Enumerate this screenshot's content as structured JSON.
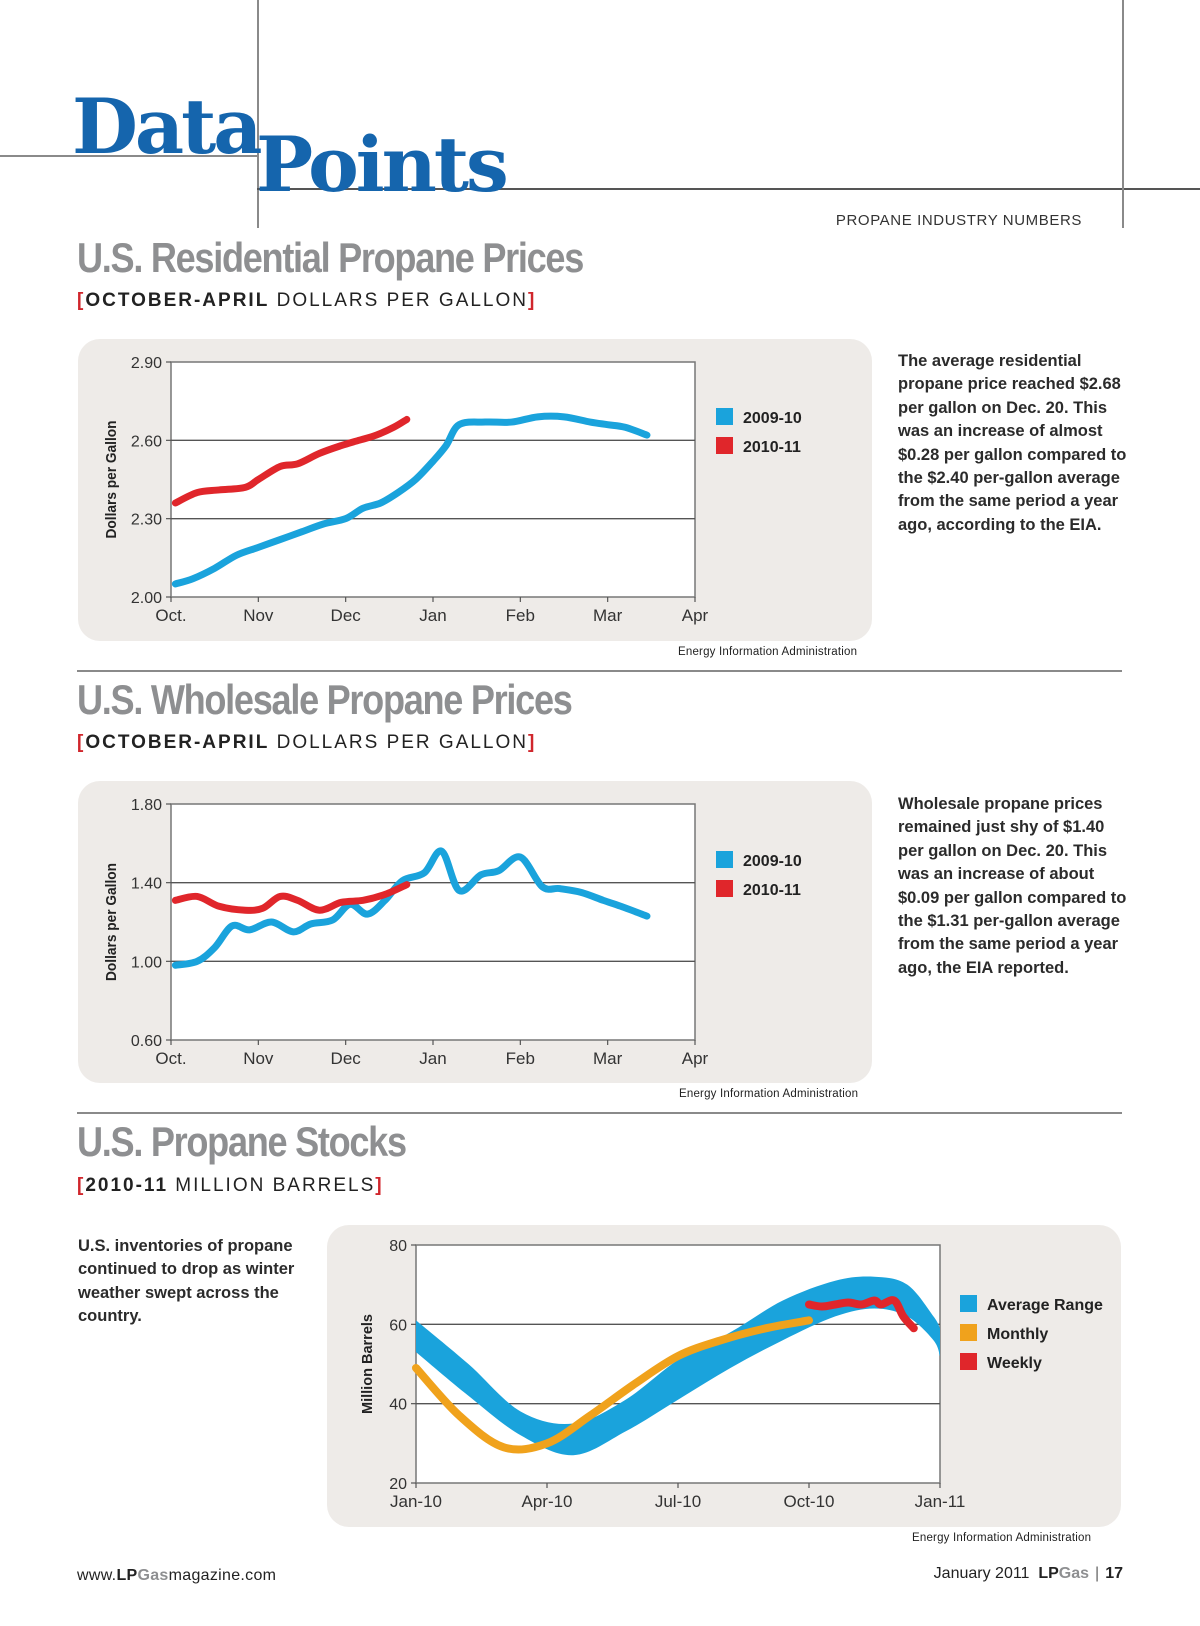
{
  "header": {
    "logo_word1": "Data",
    "logo_word2": "Points",
    "kicker": "PROPANE INDUSTRY NUMBERS"
  },
  "sections": [
    {
      "title": "U.S. Residential Propane Prices",
      "subtitle_bold": "OCTOBER-APRIL",
      "subtitle_rest": " DOLLARS PER GALLON",
      "blurb": "The average residential propane price reached $2.68 per gallon on Dec. 20. This was an increase of almost $0.28 per gallon compared to the $2.40 per-gallon average from the same period a year ago, according to the EIA.",
      "source": "Energy Information Administration"
    },
    {
      "title": "U.S. Wholesale Propane Prices",
      "subtitle_bold": "OCTOBER-APRIL",
      "subtitle_rest": " DOLLARS PER GALLON",
      "blurb": "Wholesale propane prices remained just shy of $1.40 per gallon on Dec. 20. This was an increase of about $0.09 per gallon compared to the $1.31 per-gallon average from the same period a year ago, the EIA reported.",
      "source": "Energy Information Administration"
    },
    {
      "title": "U.S. Propane Stocks",
      "subtitle_bold": "2010-11",
      "subtitle_rest": " MILLION BARRELS",
      "blurb": "U.S. inventories of propane continued to drop as winter weather swept across the country.",
      "source": "Energy Information Administration"
    }
  ],
  "colors": {
    "blue": "#1aa3dc",
    "red": "#e0262b",
    "orange": "#f0a21c",
    "panel": "#eeebe8",
    "title_gray": "#8e8f91",
    "logo_blue": "#1565ad"
  },
  "chart_data": [
    {
      "type": "line",
      "title": "U.S. Residential Propane Prices",
      "ylabel": "Dollars per Gallon",
      "xlabel": "",
      "categories": [
        "Oct.",
        "Nov",
        "Dec",
        "Jan",
        "Feb",
        "Mar",
        "Apr"
      ],
      "yticks": [
        "2.90",
        "2.60",
        "2.30",
        "2.00"
      ],
      "ylim": [
        2.0,
        2.9
      ],
      "gridlines": [
        2.6,
        2.3
      ],
      "legend_position": "right",
      "series": [
        {
          "name": "2009-10",
          "color": "#1aa3dc",
          "x": [
            0.05,
            0.25,
            0.5,
            0.75,
            1.0,
            1.25,
            1.5,
            1.75,
            2.0,
            2.2,
            2.4,
            2.6,
            2.8,
            3.0,
            3.15,
            3.3,
            3.6,
            3.9,
            4.2,
            4.5,
            4.8,
            5.0,
            5.2,
            5.45
          ],
          "values": [
            2.05,
            2.07,
            2.11,
            2.16,
            2.19,
            2.22,
            2.25,
            2.28,
            2.3,
            2.34,
            2.36,
            2.4,
            2.45,
            2.52,
            2.58,
            2.66,
            2.67,
            2.67,
            2.69,
            2.69,
            2.67,
            2.66,
            2.65,
            2.62
          ]
        },
        {
          "name": "2010-11",
          "color": "#e0262b",
          "x": [
            0.05,
            0.3,
            0.55,
            0.85,
            1.0,
            1.25,
            1.45,
            1.7,
            1.95,
            2.15,
            2.35,
            2.55,
            2.7
          ],
          "values": [
            2.36,
            2.4,
            2.41,
            2.42,
            2.45,
            2.5,
            2.51,
            2.55,
            2.58,
            2.6,
            2.62,
            2.65,
            2.68
          ]
        }
      ]
    },
    {
      "type": "line",
      "title": "U.S. Wholesale Propane Prices",
      "ylabel": "Dollars per Gallon",
      "xlabel": "",
      "categories": [
        "Oct.",
        "Nov",
        "Dec",
        "Jan",
        "Feb",
        "Mar",
        "Apr"
      ],
      "yticks": [
        "1.80",
        "1.40",
        "1.00",
        "0.60"
      ],
      "ylim": [
        0.6,
        1.8
      ],
      "gridlines": [
        1.4,
        1.0
      ],
      "legend_position": "right",
      "series": [
        {
          "name": "2009-10",
          "color": "#1aa3dc",
          "x": [
            0.05,
            0.3,
            0.5,
            0.7,
            0.9,
            1.15,
            1.4,
            1.6,
            1.85,
            2.05,
            2.25,
            2.45,
            2.65,
            2.9,
            3.1,
            3.3,
            3.55,
            3.75,
            4.0,
            4.25,
            4.45,
            4.7,
            4.95,
            5.15,
            5.45
          ],
          "values": [
            0.98,
            1.0,
            1.07,
            1.18,
            1.16,
            1.2,
            1.15,
            1.19,
            1.21,
            1.29,
            1.24,
            1.31,
            1.41,
            1.45,
            1.56,
            1.36,
            1.44,
            1.46,
            1.53,
            1.38,
            1.37,
            1.35,
            1.31,
            1.28,
            1.23
          ]
        },
        {
          "name": "2010-11",
          "color": "#e0262b",
          "x": [
            0.05,
            0.3,
            0.55,
            0.85,
            1.05,
            1.25,
            1.45,
            1.7,
            1.95,
            2.2,
            2.45,
            2.7
          ],
          "values": [
            1.31,
            1.33,
            1.28,
            1.26,
            1.27,
            1.33,
            1.31,
            1.26,
            1.3,
            1.31,
            1.34,
            1.39
          ]
        }
      ]
    },
    {
      "type": "area",
      "title": "U.S. Propane Stocks",
      "ylabel": "Million Barrels",
      "xlabel": "",
      "categories": [
        "Jan-10",
        "Apr-10",
        "Jul-10",
        "Oct-10",
        "Jan-11"
      ],
      "yticks": [
        "80",
        "60",
        "40",
        "20"
      ],
      "ylim": [
        20,
        80
      ],
      "gridlines": [
        60,
        40
      ],
      "legend_position": "right",
      "series": [
        {
          "name": "Average Range",
          "color": "#1aa3dc",
          "kind": "band",
          "x": [
            0,
            0.4,
            0.8,
            1.2,
            1.6,
            2.0,
            2.4,
            2.8,
            3.2,
            3.5,
            3.75,
            3.95,
            4.0
          ],
          "low": [
            53,
            42,
            32,
            27,
            33,
            41,
            49,
            56,
            62,
            64,
            62,
            56,
            52
          ],
          "high": [
            61,
            50,
            38,
            35,
            41,
            51,
            58,
            66,
            71,
            72,
            70,
            62,
            59
          ]
        },
        {
          "name": "Monthly",
          "color": "#f0a21c",
          "kind": "line",
          "x": [
            0,
            0.33,
            0.67,
            1.0,
            1.33,
            1.67,
            2.0,
            2.33,
            2.67,
            3.0
          ],
          "values": [
            49,
            37,
            29,
            30,
            37,
            45,
            52,
            56,
            59,
            61
          ]
        },
        {
          "name": "Weekly",
          "color": "#e0262b",
          "kind": "line",
          "x": [
            3.0,
            3.1,
            3.2,
            3.3,
            3.4,
            3.5,
            3.55,
            3.65,
            3.72,
            3.8
          ],
          "values": [
            65,
            64.5,
            65,
            65.5,
            65,
            66,
            65,
            66,
            62,
            59
          ]
        }
      ]
    }
  ],
  "footer": {
    "url_prefix": "www.",
    "url_lp": "LP",
    "url_gas": "Gas",
    "url_suffix": "magazine.com",
    "issue": "January 2011",
    "brand_lp": "LP",
    "brand_gas": "Gas",
    "page_number": "17"
  }
}
